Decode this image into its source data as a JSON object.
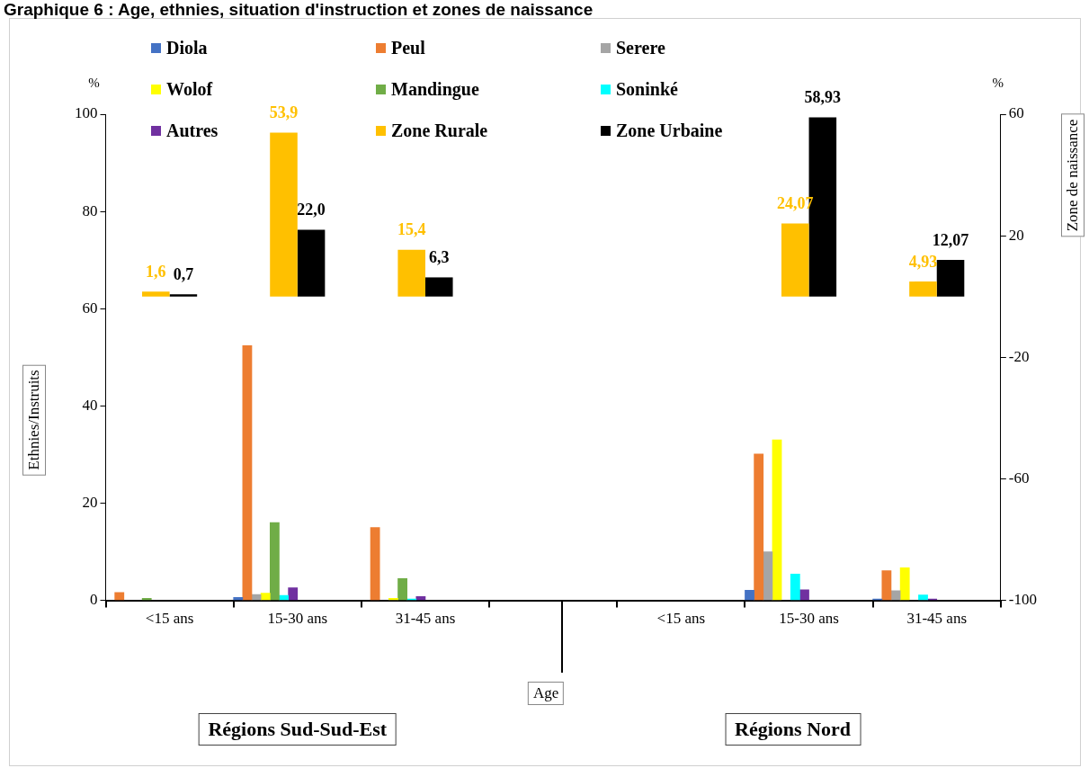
{
  "chart_data": {
    "type": "bar",
    "title": "Graphique 6 : Age, ethnies, situation d'instruction et zones de naissance",
    "categories": [
      "<15 ans",
      "15-30 ans",
      "31-45 ans",
      null,
      "<15 ans",
      "15-30 ans",
      "31-45 ans"
    ],
    "series": [
      {
        "name": "Diola",
        "color": "#4472c4",
        "values": [
          null,
          0.6,
          null,
          null,
          null,
          2.1,
          0.3
        ]
      },
      {
        "name": "Peul",
        "color": "#ed7d31",
        "values": [
          1.6,
          52.4,
          15,
          null,
          null,
          30.1,
          6.1
        ]
      },
      {
        "name": "Serere",
        "color": "#a5a5a5",
        "values": [
          null,
          1.2,
          null,
          null,
          null,
          10,
          2
        ]
      },
      {
        "name": "Wolof",
        "color": "#ffff00",
        "values": [
          null,
          1.5,
          0.4,
          null,
          null,
          33,
          6.7
        ]
      },
      {
        "name": "Mandingue",
        "color": "#70ad47",
        "values": [
          0.4,
          16,
          4.5,
          null,
          null,
          null,
          null
        ]
      },
      {
        "name": "Soninké",
        "color": "#00ffff",
        "values": [
          null,
          1,
          0.3,
          null,
          null,
          5.4,
          1.1
        ]
      },
      {
        "name": "Autres",
        "color": "#7030a0",
        "values": [
          null,
          2.6,
          0.8,
          null,
          null,
          2.2,
          0.3
        ]
      },
      {
        "name": "Zone Rurale",
        "color": "#ffc000",
        "axis": "y2",
        "values": [
          1.6,
          53.9,
          15.4,
          null,
          null,
          24.07,
          4.93
        ],
        "value_labels": [
          "1,6",
          "53,9",
          "15,4",
          null,
          null,
          "24,07",
          "4,93"
        ]
      },
      {
        "name": "Zone Urbaine",
        "color": "#000000",
        "axis": "y2",
        "values": [
          0.7,
          22.0,
          6.3,
          null,
          null,
          58.93,
          12.07
        ],
        "value_labels": [
          "0,7",
          "22,0",
          "6,3",
          null,
          null,
          "58,93",
          "12,07"
        ]
      }
    ],
    "xlabel": "Age",
    "ylabel": "Ethnies/Instruits",
    "y2label": "Zone de naissance",
    "ylim": [
      0,
      100
    ],
    "yticks": [
      0,
      20,
      40,
      60,
      80,
      100
    ],
    "y2lim": [
      -100,
      60
    ],
    "y2ticks": [
      -100,
      -60,
      -20,
      20,
      60
    ],
    "annotations": [
      "%",
      "%",
      "Régions Sud-Sud-Est",
      "Régions Nord"
    ],
    "legend": "top",
    "grid": false
  }
}
